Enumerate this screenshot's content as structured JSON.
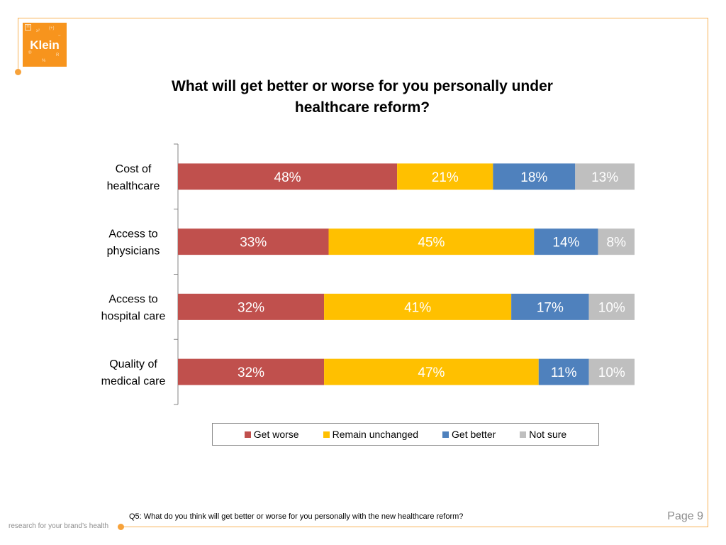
{
  "logo": {
    "word": "Klein",
    "glyphs": [
      "H",
      "x²",
      "(+)",
      "®",
      "R",
      "%",
      "~"
    ]
  },
  "footer": {
    "question": "Q5: What do you think will get better or worse for you personally with the new healthcare reform?",
    "tagline": "research for your brand’s health",
    "page": "Page 9"
  },
  "colors": {
    "get_worse": "#c0504d",
    "remain_unchanged": "#ffc000",
    "get_better": "#4f81bd",
    "not_sure": "#bfbfbf",
    "accent": "#f7941d"
  },
  "chart_data": {
    "type": "bar",
    "orientation": "horizontal",
    "stacked": true,
    "percent_stacked": true,
    "title": "What will get better or worse for you personally under healthcare reform?",
    "title_lines": [
      "What will get better or worse for you personally under",
      "healthcare reform?"
    ],
    "xlabel": "",
    "ylabel": "",
    "xlim": [
      0,
      100
    ],
    "grid": false,
    "legend_position": "bottom",
    "categories": [
      [
        "Cost of",
        "healthcare"
      ],
      [
        "Access to",
        "physicians"
      ],
      [
        "Access to",
        "hospital care"
      ],
      [
        "Quality of",
        "medical care"
      ]
    ],
    "series": [
      {
        "name": "Get worse",
        "color": "#c0504d",
        "values": [
          48,
          33,
          32,
          32
        ]
      },
      {
        "name": "Remain unchanged",
        "color": "#ffc000",
        "values": [
          21,
          45,
          41,
          47
        ]
      },
      {
        "name": "Get better",
        "color": "#4f81bd",
        "values": [
          18,
          14,
          17,
          11
        ]
      },
      {
        "name": "Not sure",
        "color": "#bfbfbf",
        "values": [
          13,
          8,
          10,
          10
        ]
      }
    ],
    "value_suffix": "%"
  }
}
